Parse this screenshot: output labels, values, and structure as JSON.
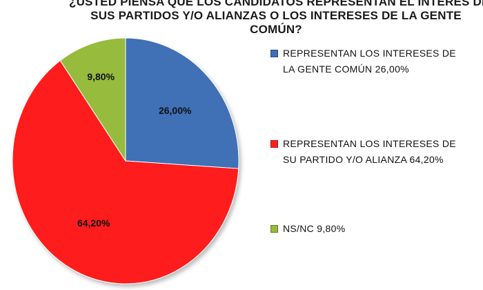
{
  "chart_data": {
    "type": "pie",
    "title_lines": [
      "¿USTED PIENSA QUE LOS CANDIDATOS REPRESENTAN EL INTERÉS  DE",
      "SUS PARTIDOS Y/O ALIANZAS O LOS INTERESES DE LA GENTE",
      "COMÚN?"
    ],
    "slices": [
      {
        "label": "REPRESENTAN LOS INTERESES DE LA GENTE COMÚN 26,00%",
        "value": 26.0,
        "data_label": "26,00%",
        "color": "#3f6fb6"
      },
      {
        "label": "REPRESENTAN LOS INTERESES DE SU PARTIDO Y/O ALIANZA 64,20%",
        "value": 64.2,
        "data_label": "64,20%",
        "color": "#ff1f1f"
      },
      {
        "label": "NS/NC 9,80%",
        "value": 9.8,
        "data_label": "9,80%",
        "color": "#97bb3e"
      }
    ],
    "legend_position": "right"
  }
}
